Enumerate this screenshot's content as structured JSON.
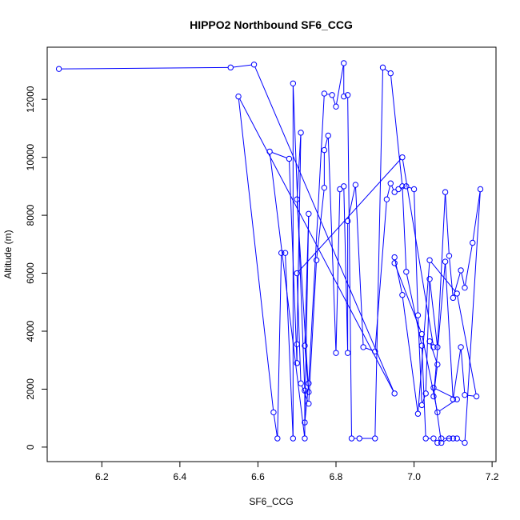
{
  "chart_data": {
    "type": "scatter",
    "title": "HIPPO2 Northbound SF6_CCG",
    "xlabel": "SF6_CCG",
    "ylabel": "Altitude (m)",
    "xlim": [
      6.06,
      7.21
    ],
    "ylim": [
      -500,
      13800
    ],
    "x_ticks": [
      6.2,
      6.4,
      6.6,
      6.8,
      7.0,
      7.2
    ],
    "x_tick_labels": [
      "6.2",
      "6.4",
      "6.6",
      "6.8",
      "7.0",
      "7.2"
    ],
    "y_ticks": [
      0,
      2000,
      4000,
      6000,
      8000,
      10000,
      12000
    ],
    "y_tick_labels": [
      "0",
      "2000",
      "4000",
      "6000",
      "8000",
      "10000",
      "12000"
    ],
    "grid": false,
    "colors": {
      "series": "#0000ff"
    },
    "series": [
      {
        "points": [
          [
            6.09,
            13050
          ],
          [
            6.53,
            13100
          ],
          [
            6.59,
            13200
          ],
          [
            6.95,
            1850
          ],
          [
            6.55,
            12100
          ],
          [
            6.64,
            1200
          ],
          [
            6.65,
            300
          ],
          [
            6.66,
            6700
          ],
          [
            6.67,
            6700
          ],
          [
            6.69,
            300
          ],
          [
            6.69,
            12550
          ],
          [
            6.72,
            1950
          ],
          [
            6.72,
            300
          ],
          [
            6.63,
            10200
          ],
          [
            6.68,
            9950
          ],
          [
            6.7,
            2900
          ],
          [
            6.7,
            3550
          ],
          [
            6.71,
            10850
          ],
          [
            6.7,
            8550
          ],
          [
            6.73,
            1900
          ],
          [
            6.72,
            3500
          ],
          [
            6.73,
            8050
          ],
          [
            6.72,
            850
          ],
          [
            6.73,
            2200
          ],
          [
            6.77,
            12200
          ],
          [
            6.79,
            12150
          ],
          [
            6.8,
            11750
          ],
          [
            6.82,
            13250
          ],
          [
            6.82,
            12100
          ],
          [
            6.83,
            12150
          ],
          [
            6.84,
            300
          ],
          [
            6.86,
            300
          ],
          [
            6.9,
            300
          ],
          [
            6.92,
            13100
          ],
          [
            6.94,
            12900
          ],
          [
            6.97,
            9000
          ],
          [
            6.98,
            6050
          ],
          [
            7.02,
            3500
          ],
          [
            7.03,
            300
          ],
          [
            7.05,
            300
          ],
          [
            7.06,
            150
          ],
          [
            7.07,
            300
          ],
          [
            7.1,
            300
          ],
          [
            7.11,
            300
          ],
          [
            7.13,
            150
          ],
          [
            7.17,
            8900
          ],
          [
            7.15,
            7050
          ],
          [
            7.13,
            5500
          ],
          [
            7.12,
            6100
          ],
          [
            7.1,
            5150
          ],
          [
            7.09,
            6600
          ],
          [
            7.08,
            8800
          ],
          [
            7.06,
            3450
          ],
          [
            7.04,
            5800
          ],
          [
            7.03,
            1850
          ],
          [
            7.02,
            1450
          ],
          [
            7.01,
            4550
          ],
          [
            7.0,
            8900
          ],
          [
            6.98,
            9000
          ],
          [
            6.96,
            8900
          ],
          [
            6.95,
            8800
          ],
          [
            6.94,
            9100
          ],
          [
            6.93,
            8550
          ],
          [
            6.9,
            3300
          ],
          [
            6.87,
            3450
          ],
          [
            6.85,
            9050
          ],
          [
            6.83,
            7800
          ],
          [
            6.83,
            3250
          ],
          [
            6.82,
            9000
          ],
          [
            6.81,
            8900
          ],
          [
            6.8,
            3250
          ],
          [
            6.78,
            10750
          ],
          [
            6.77,
            10250
          ],
          [
            6.77,
            8950
          ],
          [
            6.75,
            6450
          ],
          [
            6.73,
            1500
          ],
          [
            6.71,
            2200
          ],
          [
            6.7,
            6000
          ],
          [
            6.97,
            10000
          ],
          [
            7.05,
            3450
          ],
          [
            7.04,
            3650
          ],
          [
            7.06,
            2850
          ],
          [
            7.05,
            1750
          ],
          [
            7.08,
            6400
          ],
          [
            7.1,
            1650
          ],
          [
            7.12,
            3450
          ],
          [
            7.13,
            1800
          ],
          [
            7.16,
            1750
          ],
          [
            7.11,
            5300
          ],
          [
            7.04,
            6450
          ],
          [
            7.01,
            1150
          ],
          [
            6.97,
            5250
          ],
          [
            6.95,
            6550
          ],
          [
            6.95,
            6350
          ],
          [
            7.02,
            3900
          ],
          [
            7.06,
            1200
          ],
          [
            7.11,
            1650
          ],
          [
            7.05,
            2050
          ],
          [
            7.07,
            150
          ],
          [
            7.09,
            300
          ]
        ]
      }
    ]
  }
}
